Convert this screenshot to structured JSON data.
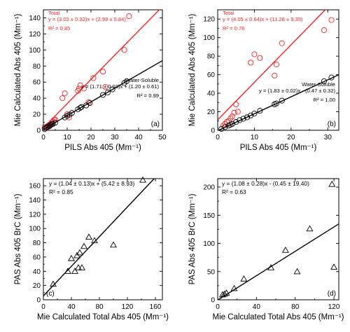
{
  "chart_data": [
    {
      "panel": "(a)",
      "type": "scatter",
      "xlabel": "PILS Abs 405 (Mm⁻¹)",
      "ylabel": "Mie Calculated Abs 405 (Mm⁻¹)",
      "xlim": [
        0,
        50
      ],
      "ylim": [
        0,
        150
      ],
      "xticks": [
        0,
        10,
        20,
        30,
        40,
        50
      ],
      "yticks": [
        0,
        20,
        40,
        60,
        80,
        100,
        120,
        140
      ],
      "grid": false,
      "series": [
        {
          "name": "Total",
          "color": "#ff2020",
          "marker": "circle",
          "fit": {
            "slope": 3.02,
            "intercept": 2.99,
            "label": "y = (3.02 ± 0.32)x + (2.99 ± 5.84)",
            "r2_label": "R² = 0.85"
          },
          "x": [
            0.5,
            1.2,
            2.0,
            2.6,
            3.0,
            3.6,
            4.0,
            4.5,
            5.0,
            8.0,
            9.0,
            10.0,
            10.8,
            14.5,
            15.0,
            15.5,
            17.0,
            19.0,
            21.0,
            25.0,
            26.0,
            34.0,
            36.0
          ],
          "y": [
            4,
            3,
            6,
            5,
            8,
            10,
            11,
            13,
            13,
            40,
            46,
            20,
            16,
            49,
            52,
            56,
            52,
            35,
            65,
            73,
            54,
            100,
            142
          ]
        },
        {
          "name": "Water-Soluble",
          "color": "#000000",
          "marker": "circle",
          "fit": {
            "slope": 1.71,
            "intercept": 1.2,
            "label": "y = (1.71 ± 0.03)x + (1.20 ± 0.61)",
            "r2_label": "R² = 0.99"
          },
          "x": [
            0.5,
            1.0,
            1.5,
            2.0,
            2.5,
            3.0,
            3.5,
            4.0,
            5.0,
            9.0,
            10.0,
            11.0,
            12.0,
            14.5,
            15.5,
            16.0,
            18.0,
            19.5,
            25.0,
            27.0,
            29.0,
            34.0,
            35.0
          ],
          "y": [
            1.5,
            3,
            4,
            4.5,
            5.5,
            6.5,
            7.5,
            8,
            9.5,
            16,
            18,
            19.5,
            21.5,
            26,
            28,
            29,
            31,
            34,
            44,
            47,
            51,
            59,
            61
          ]
        }
      ]
    },
    {
      "panel": "(b)",
      "type": "scatter",
      "xlabel": "PILS Abs 405 (Mm⁻¹)",
      "ylabel": "Mie Calculated Abs 405 (Mm⁻¹)",
      "xlim": [
        0,
        33
      ],
      "ylim": [
        0,
        130
      ],
      "xticks": [
        0,
        10,
        20,
        30
      ],
      "yticks": [
        0,
        20,
        40,
        60,
        80,
        100,
        120
      ],
      "grid": false,
      "series": [
        {
          "name": "Total",
          "color": "#ff2020",
          "marker": "circle",
          "fit": {
            "slope": 4.05,
            "intercept": 11.28,
            "label": "y = (4.05 ± 0.64)x + (11.28 ± 9.35)",
            "r2_label": "R² = 0.76"
          },
          "x": [
            1.5,
            2.0,
            2.5,
            3.0,
            3.5,
            4.0,
            4.5,
            5.0,
            5.5,
            9.0,
            10.0,
            11.5,
            15.5,
            16.0,
            17.5,
            29.0,
            31.0
          ],
          "y": [
            5,
            7,
            9,
            10,
            13,
            15,
            19,
            28,
            20,
            73,
            82,
            78,
            59,
            71,
            94,
            108,
            119
          ]
        },
        {
          "name": "Water-Soluble",
          "color": "#000000",
          "marker": "circle",
          "fit": {
            "slope": 1.83,
            "intercept": -0.47,
            "label": "y = (1.83 ± 0.02)x - (0.47 ± 0.32)",
            "r2_label": "R² = 1.00"
          },
          "x": [
            1.0,
            2.0,
            3.0,
            3.5,
            4.0,
            5.0,
            6.0,
            7.0,
            8.0,
            9.0,
            10.0,
            11.5,
            15.5,
            16.0,
            17.5,
            29.0,
            31.0
          ],
          "y": [
            1.5,
            3.5,
            5,
            6,
            7,
            9,
            11,
            12.5,
            14,
            16,
            18,
            21,
            28,
            29,
            32,
            53,
            57
          ]
        }
      ]
    },
    {
      "panel": "(c)",
      "type": "scatter",
      "xlabel": "Mie Calculated Total Abs 405 (Mm⁻¹)",
      "ylabel": "PAS Abs 405 BrC (Mm⁻¹)",
      "xlim": [
        0,
        170
      ],
      "ylim": [
        0,
        170
      ],
      "xticks": [
        0,
        40,
        80,
        120,
        160
      ],
      "yticks": [
        0,
        20,
        40,
        60,
        80,
        100,
        120,
        140,
        160
      ],
      "grid": false,
      "series": [
        {
          "name": "",
          "color": "#000000",
          "marker": "triangle",
          "fit": {
            "slope": 1.04,
            "intercept": 5.42,
            "label": "y = (1.04 ± 0.13)x + (5.42 ± 8.93)",
            "r2_label": "R² = 0.85"
          },
          "x": [
            14,
            35,
            40,
            45,
            48,
            50,
            52,
            55,
            58,
            65,
            73,
            100,
            142
          ],
          "y": [
            22,
            40,
            58,
            40,
            62,
            45,
            66,
            45,
            75,
            88,
            83,
            77,
            168
          ]
        }
      ]
    },
    {
      "panel": "(d)",
      "type": "scatter",
      "xlabel": "Mie Calculated Total Abs 405 (Mm⁻¹)",
      "ylabel": "PAS Abs 405 BrC (Mm⁻¹)",
      "xlim": [
        0,
        125
      ],
      "ylim": [
        0,
        215
      ],
      "xticks": [
        0,
        40,
        80,
        120
      ],
      "yticks": [
        0,
        50,
        100,
        150,
        200
      ],
      "grid": false,
      "series": [
        {
          "name": "",
          "color": "#000000",
          "marker": "triangle",
          "fit": {
            "slope": 1.08,
            "intercept": -0.45,
            "label": "y = (1.08 ± 0.28)x - (0.45 ± 19.40)",
            "r2_label": "R² = 0.63"
          },
          "x": [
            5,
            7,
            9,
            17,
            27,
            55,
            70,
            82,
            95,
            118,
            120
          ],
          "y": [
            9,
            10,
            12,
            20,
            37,
            57,
            88,
            50,
            126,
            205,
            58
          ]
        }
      ]
    }
  ]
}
